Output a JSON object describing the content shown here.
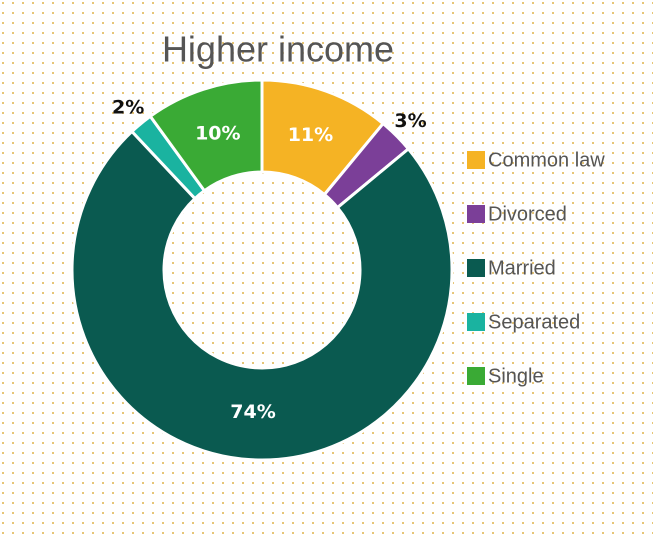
{
  "chart_data": {
    "type": "donut",
    "title": "Higher income",
    "categories": [
      "Common law",
      "Divorced",
      "Married",
      "Separated",
      "Single"
    ],
    "values": [
      11,
      3,
      74,
      2,
      10
    ],
    "value_labels": [
      "11%",
      "3%",
      "74%",
      "2%",
      "10%"
    ],
    "colors": [
      "#f5b324",
      "#7b3f98",
      "#0a5a50",
      "#1ab3a0",
      "#3aaa35"
    ],
    "legend": "right"
  }
}
